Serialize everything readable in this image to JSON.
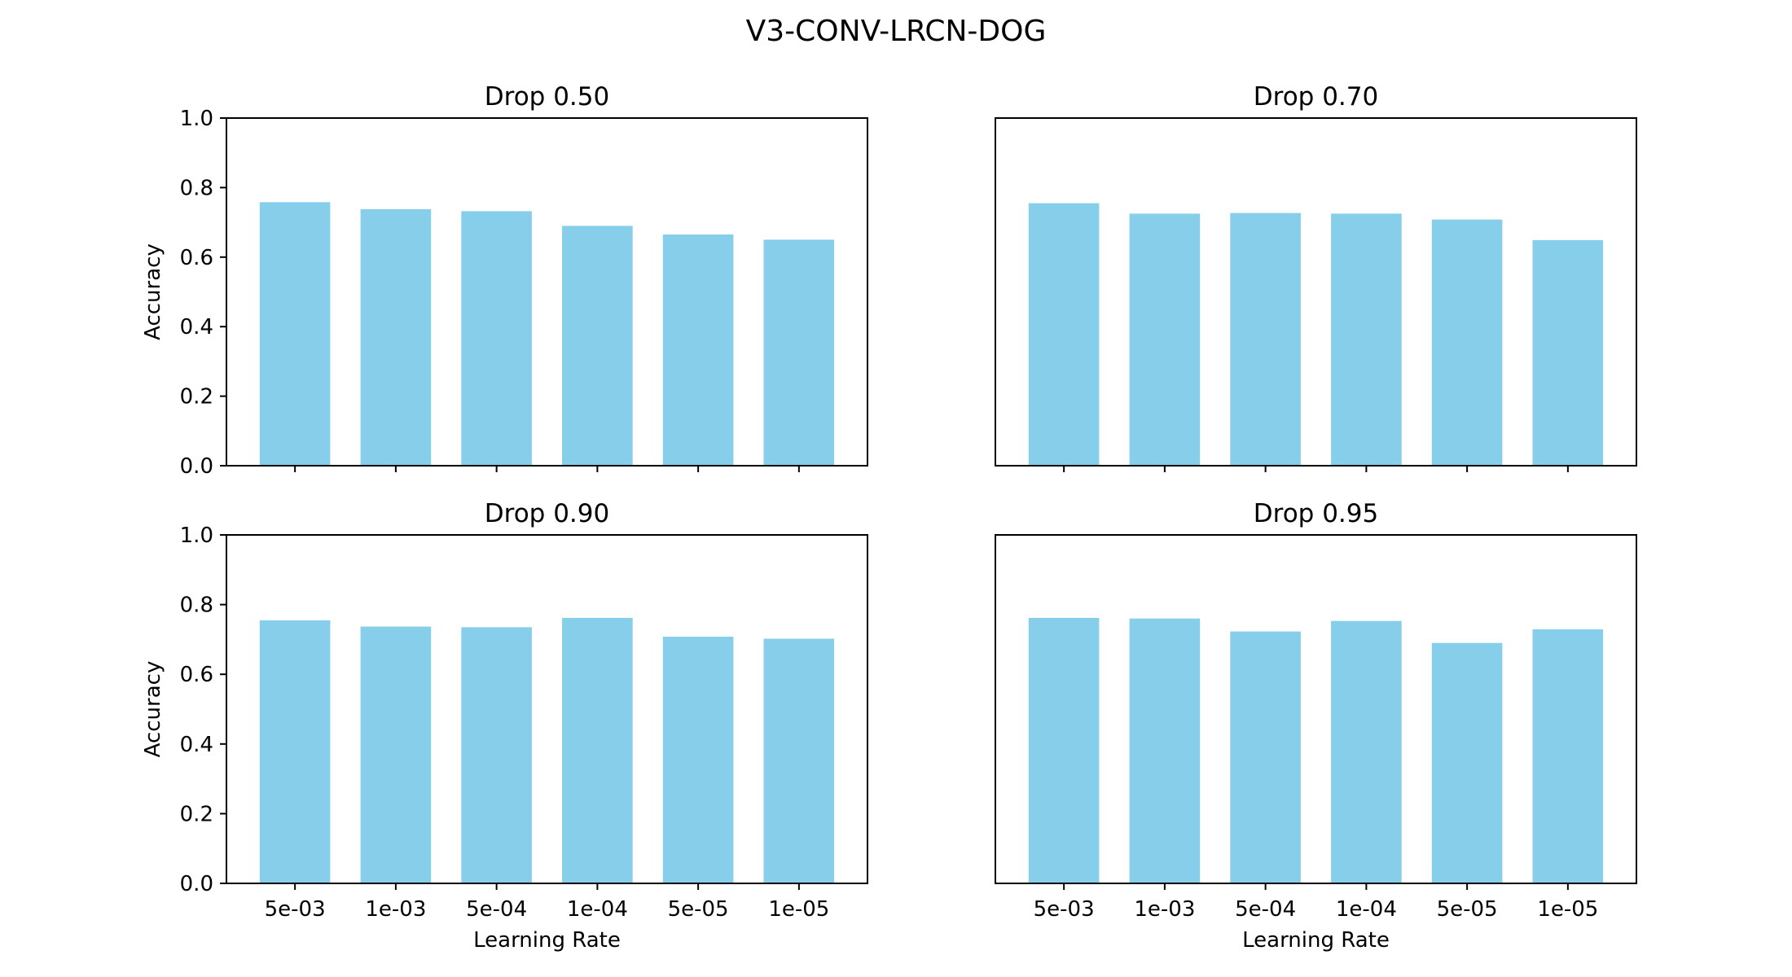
{
  "figure": {
    "title": "V3-CONV-LRCN-DOG"
  },
  "style": {
    "bar_color": "#87CEEB",
    "axis_color": "#000000",
    "background": "#ffffff"
  },
  "chart_data": [
    {
      "type": "bar",
      "title": "Drop 0.50",
      "categories": [
        "5e-03",
        "1e-03",
        "5e-04",
        "1e-04",
        "5e-05",
        "1e-05"
      ],
      "values": [
        0.758,
        0.738,
        0.732,
        0.69,
        0.665,
        0.65
      ],
      "xlabel": "",
      "ylabel": "Accuracy",
      "ylim": [
        0,
        1.0
      ],
      "yticks": [
        "0.0",
        "0.2",
        "0.4",
        "0.6",
        "0.8",
        "1.0"
      ],
      "grid": false
    },
    {
      "type": "bar",
      "title": "Drop 0.70",
      "categories": [
        "5e-03",
        "1e-03",
        "5e-04",
        "1e-04",
        "5e-05",
        "1e-05"
      ],
      "values": [
        0.755,
        0.725,
        0.727,
        0.725,
        0.708,
        0.649
      ],
      "xlabel": "",
      "ylabel": "",
      "ylim": [
        0,
        1.0
      ],
      "yticks": [],
      "grid": false
    },
    {
      "type": "bar",
      "title": "Drop 0.90",
      "categories": [
        "5e-03",
        "1e-03",
        "5e-04",
        "1e-04",
        "5e-05",
        "1e-05"
      ],
      "values": [
        0.755,
        0.737,
        0.735,
        0.762,
        0.708,
        0.702
      ],
      "xlabel": "Learning Rate",
      "ylabel": "Accuracy",
      "ylim": [
        0,
        1.0
      ],
      "yticks": [
        "0.0",
        "0.2",
        "0.4",
        "0.6",
        "0.8",
        "1.0"
      ],
      "grid": false
    },
    {
      "type": "bar",
      "title": "Drop 0.95",
      "categories": [
        "5e-03",
        "1e-03",
        "5e-04",
        "1e-04",
        "5e-05",
        "1e-05"
      ],
      "values": [
        0.762,
        0.76,
        0.723,
        0.753,
        0.69,
        0.729
      ],
      "xlabel": "Learning Rate",
      "ylabel": "",
      "ylim": [
        0,
        1.0
      ],
      "yticks": [],
      "grid": false
    }
  ]
}
